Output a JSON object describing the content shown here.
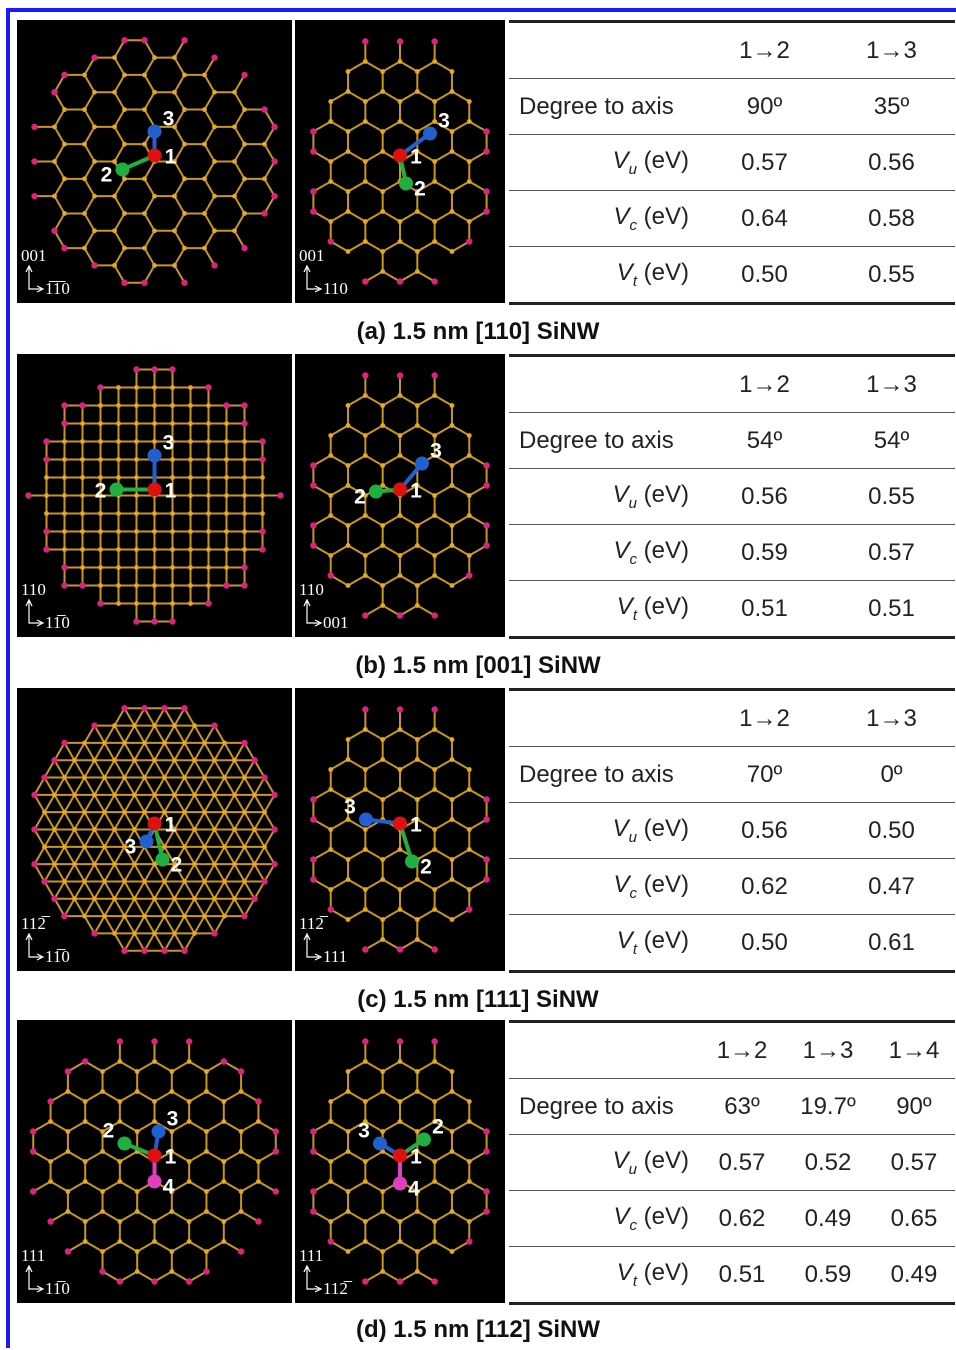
{
  "panels": [
    {
      "caption": "(a) 1.5 nm [110] SiNW",
      "images": [
        {
          "axis_up": "001",
          "axis_right": "1̅1̅0",
          "atoms": [
            "1",
            "2",
            "3"
          ]
        },
        {
          "axis_up": "001",
          "axis_right": "110",
          "atoms": [
            "1",
            "2",
            "3"
          ]
        }
      ],
      "table": {
        "columns": [
          "1→2",
          "1→3"
        ],
        "rows": [
          {
            "label": "Degree to axis",
            "values": [
              "90º",
              "35º"
            ]
          },
          {
            "symbol": "V",
            "sub": "u",
            "unit": "(eV)",
            "values": [
              "0.57",
              "0.56"
            ]
          },
          {
            "symbol": "V",
            "sub": "c",
            "unit": "(eV)",
            "values": [
              "0.64",
              "0.58"
            ]
          },
          {
            "symbol": "V",
            "sub": "t",
            "unit": "(eV)",
            "values": [
              "0.50",
              "0.55"
            ]
          }
        ]
      }
    },
    {
      "caption": "(b) 1.5 nm [001] SiNW",
      "images": [
        {
          "axis_up": "110",
          "axis_right": "11̅0",
          "atoms": [
            "1",
            "2",
            "3"
          ]
        },
        {
          "axis_up": "110",
          "axis_right": "001",
          "atoms": [
            "1",
            "2",
            "3"
          ]
        }
      ],
      "table": {
        "columns": [
          "1→2",
          "1→3"
        ],
        "rows": [
          {
            "label": "Degree to axis",
            "values": [
              "54º",
              "54º"
            ]
          },
          {
            "symbol": "V",
            "sub": "u",
            "unit": "(eV)",
            "values": [
              "0.56",
              "0.55"
            ]
          },
          {
            "symbol": "V",
            "sub": "c",
            "unit": "(eV)",
            "values": [
              "0.59",
              "0.57"
            ]
          },
          {
            "symbol": "V",
            "sub": "t",
            "unit": "(eV)",
            "values": [
              "0.51",
              "0.51"
            ]
          }
        ]
      }
    },
    {
      "caption": "(c) 1.5 nm [111] SiNW",
      "images": [
        {
          "axis_up": "112̅",
          "axis_right": "11̅0",
          "atoms": [
            "1",
            "2",
            "3"
          ]
        },
        {
          "axis_up": "112̅",
          "axis_right": "111",
          "atoms": [
            "1",
            "2",
            "3"
          ]
        }
      ],
      "table": {
        "columns": [
          "1→2",
          "1→3"
        ],
        "rows": [
          {
            "label": "Degree to axis",
            "values": [
              "70º",
              "0º"
            ]
          },
          {
            "symbol": "V",
            "sub": "u",
            "unit": "(eV)",
            "values": [
              "0.56",
              "0.50"
            ]
          },
          {
            "symbol": "V",
            "sub": "c",
            "unit": "(eV)",
            "values": [
              "0.62",
              "0.47"
            ]
          },
          {
            "symbol": "V",
            "sub": "t",
            "unit": "(eV)",
            "values": [
              "0.50",
              "0.61"
            ]
          }
        ]
      }
    },
    {
      "caption": "(d) 1.5 nm [112] SiNW",
      "images": [
        {
          "axis_up": "111",
          "axis_right": "11̅0",
          "atoms": [
            "1",
            "2",
            "3",
            "4"
          ]
        },
        {
          "axis_up": "111",
          "axis_right": "112̅",
          "atoms": [
            "1",
            "2",
            "3",
            "4"
          ]
        }
      ],
      "table": {
        "columns": [
          "1→2",
          "1→3",
          "1→4"
        ],
        "rows": [
          {
            "label": "Degree to axis",
            "values": [
              "63º",
              "19.7º",
              "90º"
            ]
          },
          {
            "symbol": "V",
            "sub": "u",
            "unit": "(eV)",
            "values": [
              "0.57",
              "0.52",
              "0.57"
            ]
          },
          {
            "symbol": "V",
            "sub": "c",
            "unit": "(eV)",
            "values": [
              "0.62",
              "0.49",
              "0.65"
            ]
          },
          {
            "symbol": "V",
            "sub": "t",
            "unit": "(eV)",
            "values": [
              "0.51",
              "0.59",
              "0.49"
            ]
          }
        ]
      }
    }
  ]
}
